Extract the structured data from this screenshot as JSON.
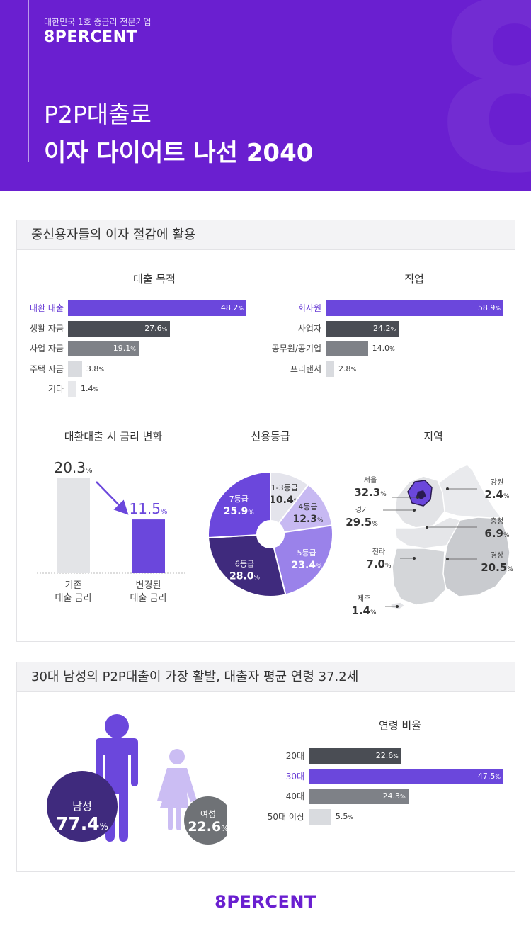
{
  "header": {
    "tagline": "대한민국 1호 중금리 전문기업",
    "logo": "8PERCENT",
    "title_line1": "P2P대출로",
    "title_line2": "이자 다이어트 나선 2040",
    "bg_color": "#6a1fd0"
  },
  "section1": {
    "title": "중신용자들의 이자 절감에 활용",
    "purpose_title": "대출 목적",
    "job_title": "직업",
    "rate_title": "대환대출 시 금리 변화",
    "grade_title": "신용등급",
    "region_title": "지역"
  },
  "section2": {
    "title": "30대 남성의 P2P대출이 가장 활발, 대출자 평균 연령 37.2세",
    "age_title": "연령 비율",
    "male_label": "남성",
    "male_value": "77.4",
    "female_label": "여성",
    "female_value": "22.6",
    "unit": "%"
  },
  "footer": {
    "logo": "8PERCENT"
  },
  "chart_data": [
    {
      "type": "bar",
      "orientation": "horizontal",
      "title": "대출 목적",
      "categories": [
        "대환 대출",
        "생활 자금",
        "사업 자금",
        "주택 자금",
        "기타"
      ],
      "values": [
        48.2,
        27.6,
        19.1,
        3.8,
        1.4
      ],
      "unit": "%",
      "colors": [
        "#6b47dc",
        "#4a4d54",
        "#7e8187",
        "#d9dbdf",
        "#e7e8eb"
      ]
    },
    {
      "type": "bar",
      "orientation": "horizontal",
      "title": "직업",
      "categories": [
        "회사원",
        "사업자",
        "공무원/공기업",
        "프리랜서"
      ],
      "values": [
        58.9,
        24.2,
        14.0,
        2.8
      ],
      "unit": "%",
      "colors": [
        "#6b47dc",
        "#4a4d54",
        "#7e8187",
        "#d9dbdf"
      ]
    },
    {
      "type": "bar",
      "title": "대환대출 시 금리 변화",
      "categories": [
        "기존\n대출 금리",
        "변경된\n대출 금리"
      ],
      "values": [
        20.3,
        11.5
      ],
      "unit": "%",
      "colors": [
        "#e3e4e7",
        "#6b47dc"
      ]
    },
    {
      "type": "pie",
      "title": "신용등급",
      "categories": [
        "1-3등급",
        "4등급",
        "5등급",
        "6등급",
        "7등급"
      ],
      "values": [
        10.4,
        12.3,
        23.4,
        28.0,
        25.9
      ],
      "unit": "%",
      "colors": [
        "#e4e4ec",
        "#c7b9f2",
        "#9a82ea",
        "#3f2a7d",
        "#6b47dc"
      ]
    },
    {
      "type": "table",
      "title": "지역",
      "categories": [
        "서울",
        "경기",
        "강원",
        "충청",
        "전라",
        "경상",
        "제주"
      ],
      "values": [
        32.3,
        29.5,
        2.4,
        6.9,
        7.0,
        20.5,
        1.4
      ],
      "unit": "%"
    },
    {
      "type": "bar",
      "orientation": "horizontal",
      "title": "연령 비율",
      "categories": [
        "20대",
        "30대",
        "40대",
        "50대 이상"
      ],
      "values": [
        22.6,
        47.5,
        24.3,
        5.5
      ],
      "unit": "%",
      "colors": [
        "#4a4d54",
        "#6b47dc",
        "#7e8187",
        "#d9dbdf"
      ]
    }
  ]
}
